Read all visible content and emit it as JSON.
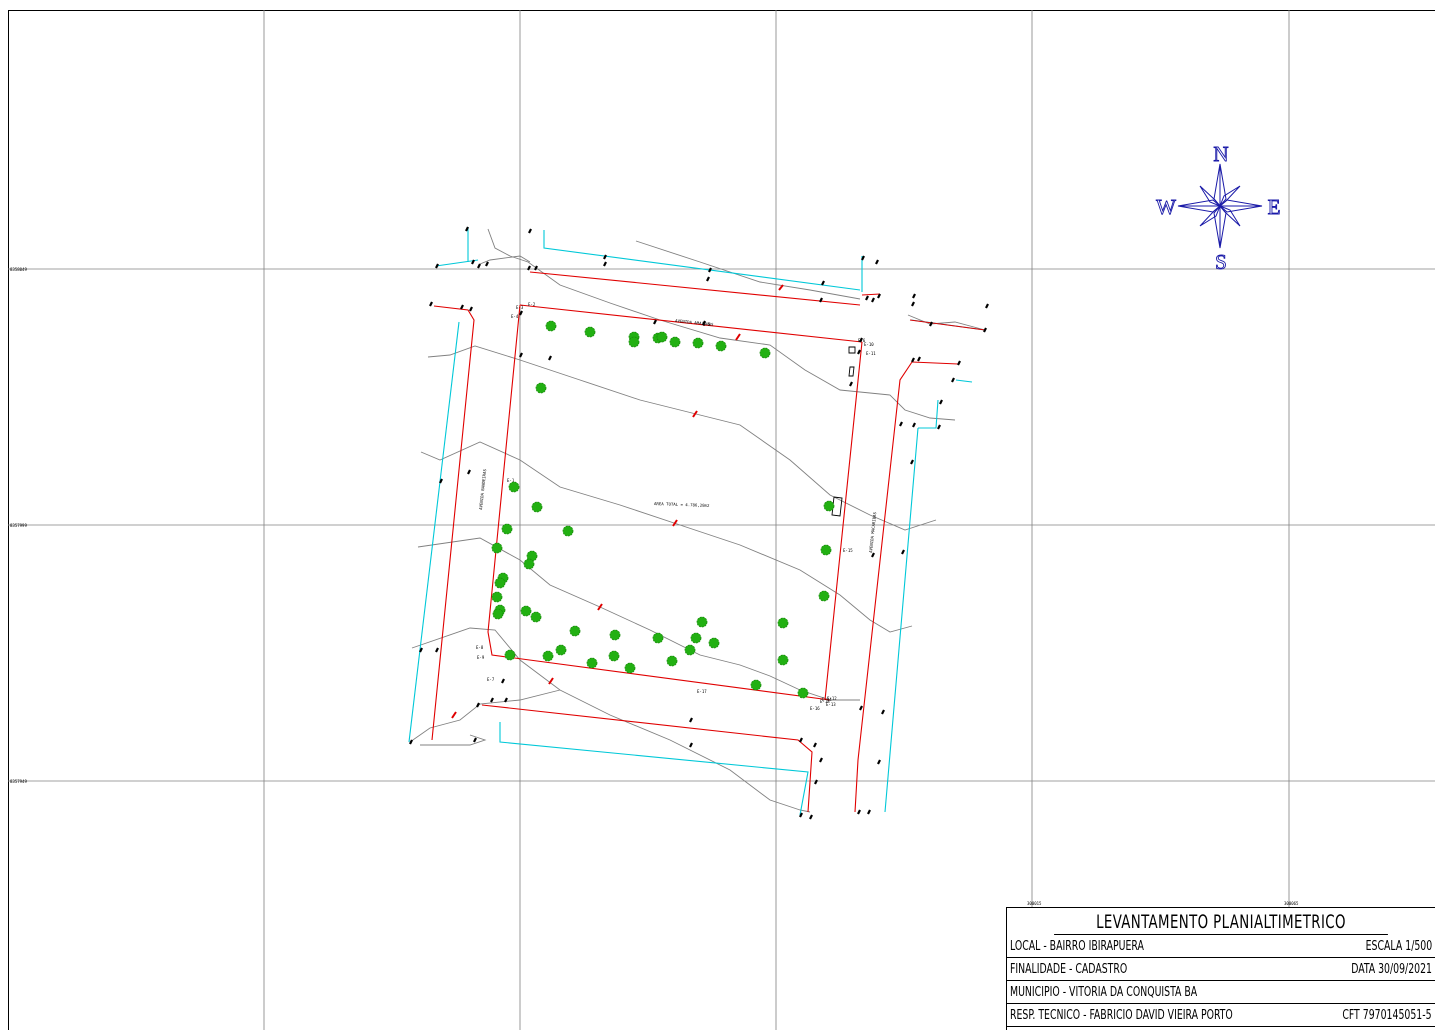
{
  "grid": {
    "northings": [
      "8358049",
      "8357999",
      "8357949"
    ],
    "eastings": [
      "300015",
      "300065"
    ]
  },
  "compass": {
    "north": "N",
    "south": "S",
    "east": "E",
    "west": "W"
  },
  "streets": {
    "top": "AVENIDA AMAZONAS",
    "left": "AVENIDA BANDEIRAS",
    "right": "AVENIDA MACARIBAS"
  },
  "area_label": "AREA TOTAL = 4.786,28m2",
  "vertex_labels": [
    "E-1",
    "E-2",
    "E-3",
    "E-4",
    "E-5",
    "E-6",
    "E-7",
    "E-8",
    "E-9",
    "E-10",
    "E-11",
    "E-12",
    "E-13",
    "E-14",
    "E-15",
    "E-16",
    "E-17",
    "E-18"
  ],
  "title_block": {
    "title": "LEVANTAMENTO PLANIALTIMETRICO",
    "local": "LOCAL - BAIRRO IBIRAPUERA",
    "escala": "ESCALA 1/500",
    "finalidade": "FINALIDADE - CADASTRO",
    "data": "DATA 30/09/2021",
    "municipio": "MUNICIPIO - VITORIA DA CONQUISTA BA",
    "resp": "RESP. TECNICO - FABRICIO DAVID VIEIRA PORTO",
    "cft": "CFT 7970145051-5"
  },
  "colors": {
    "boundary": "#e00000",
    "curb": "#00c8d8",
    "contour": "#808080",
    "tree": "#22b012",
    "grid": "#808080"
  }
}
